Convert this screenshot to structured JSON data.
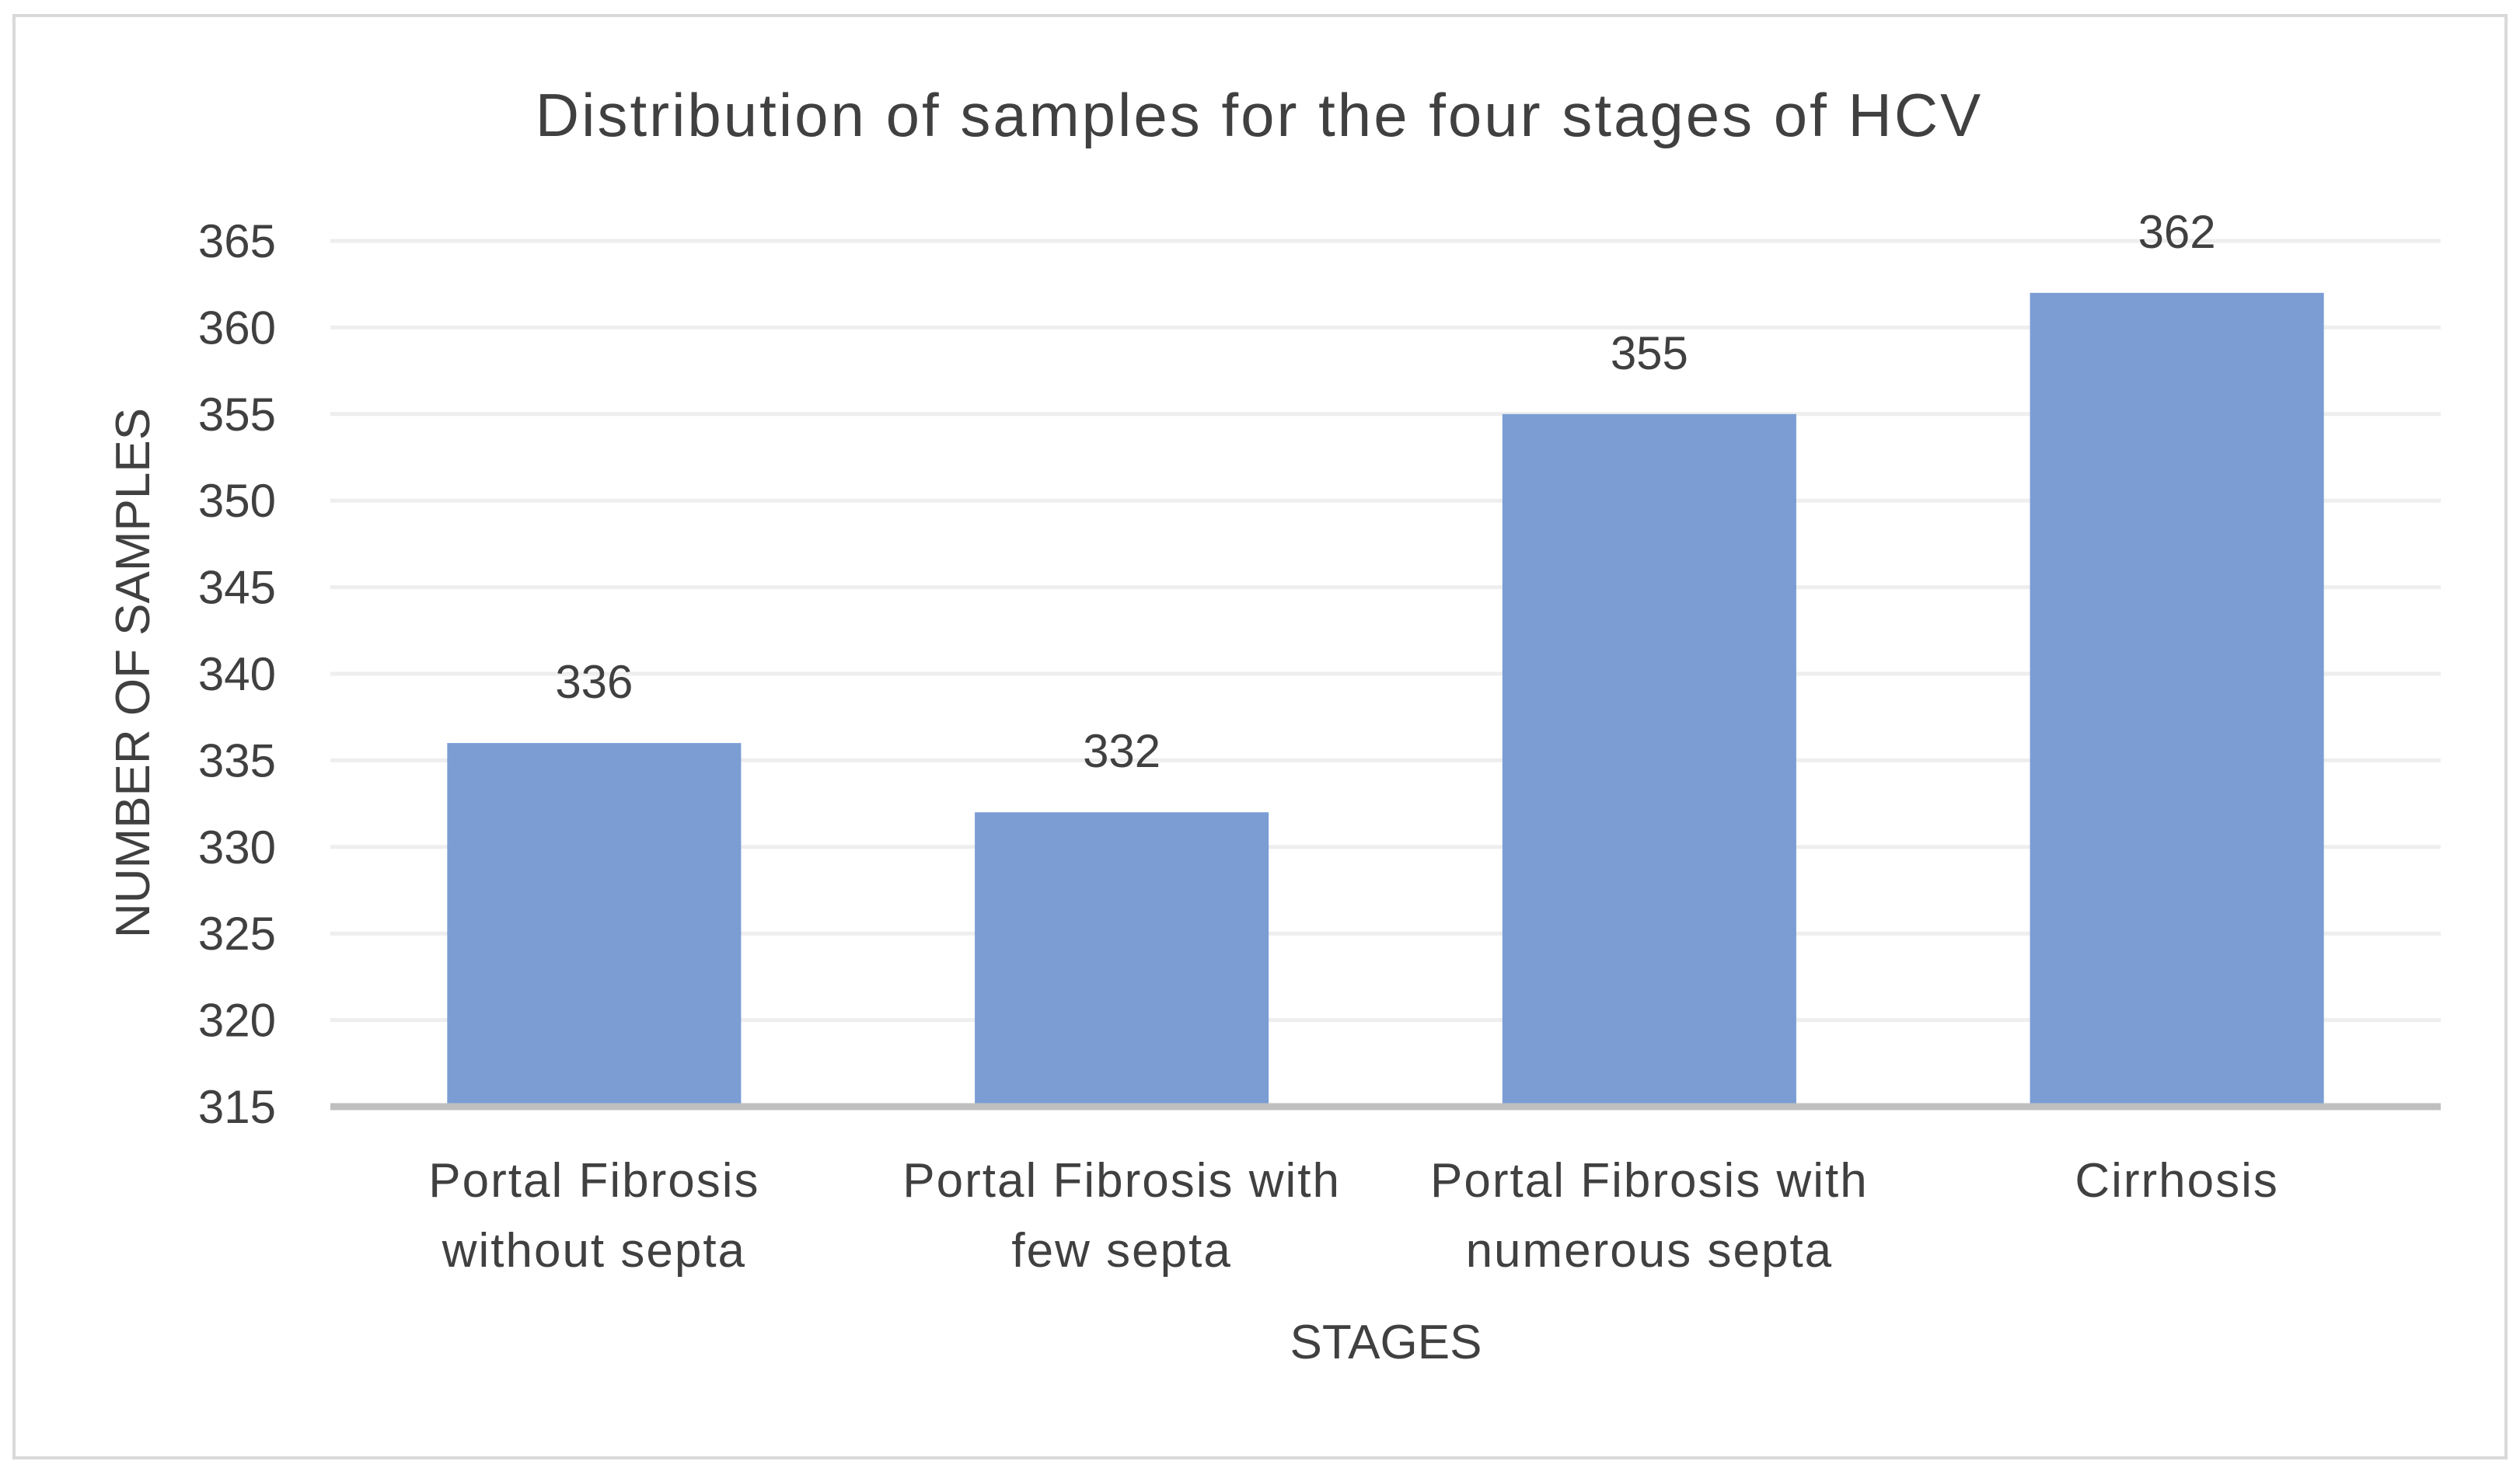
{
  "chart_data": {
    "type": "bar",
    "title": "Distribution of samples for the four stages of HCV",
    "xlabel": "STAGES",
    "ylabel": "NUMBER OF SAMPLES",
    "categories": [
      [
        "Portal Fibrosis",
        "without septa"
      ],
      [
        "Portal Fibrosis with",
        "few septa"
      ],
      [
        "Portal Fibrosis with",
        "numerous septa"
      ],
      [
        "Cirrhosis"
      ]
    ],
    "values": [
      336,
      332,
      355,
      362
    ],
    "data_labels": [
      "336",
      "332",
      "355",
      "362"
    ],
    "ylim": [
      315,
      365
    ],
    "yticks": [
      "315",
      "320",
      "325",
      "330",
      "335",
      "340",
      "345",
      "350",
      "355",
      "360",
      "365"
    ],
    "grid": true,
    "legend": "none",
    "colors": {
      "bar": "#7b9dd4",
      "grid": "#eeeeee",
      "axis": "#bfbfbf",
      "text": "#404040",
      "border": "#d9d9d9"
    }
  }
}
